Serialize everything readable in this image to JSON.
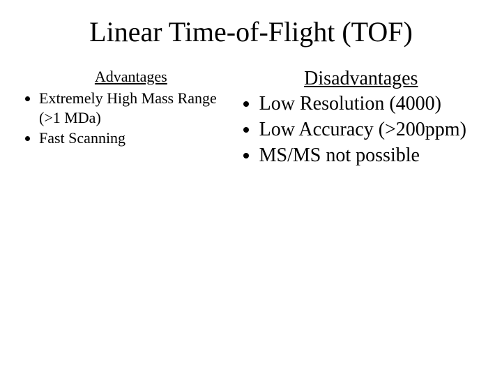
{
  "title": "Linear Time-of-Flight (TOF)",
  "left": {
    "heading": "Advantages",
    "items": [
      "Extremely High Mass Range (>1 MDa)",
      "Fast Scanning"
    ]
  },
  "right": {
    "heading": "Disadvantages",
    "items": [
      "Low Resolution (4000)",
      "Low Accuracy (>200ppm)",
      "MS/MS not possible"
    ]
  },
  "colors": {
    "background": "#ffffff",
    "text": "#000000"
  },
  "fonts": {
    "family": "Times New Roman",
    "title_size_pt": 40,
    "left_body_size_pt": 22,
    "right_body_size_pt": 28
  }
}
